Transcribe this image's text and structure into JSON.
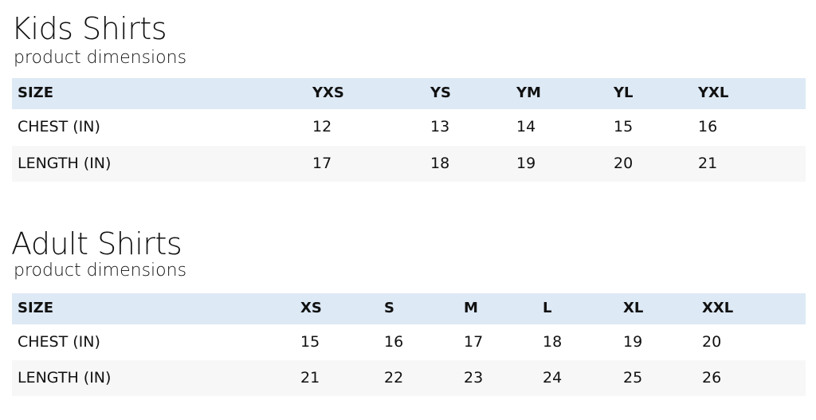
{
  "sections": [
    {
      "title": "Kids Shirts",
      "subtitle": "product dimensions",
      "table": {
        "header": [
          "SIZE",
          "YXS",
          "YS",
          "YM",
          "YL",
          "YXL"
        ],
        "rows": [
          [
            "CHEST (IN)",
            12,
            13,
            14,
            15,
            16
          ],
          [
            "LENGTH (IN)",
            17,
            18,
            19,
            20,
            21
          ]
        ]
      }
    },
    {
      "title": "Adult Shirts",
      "subtitle": "product dimensions",
      "table": {
        "header": [
          "SIZE",
          "XS",
          "S",
          "M",
          "L",
          "XL",
          "XXL"
        ],
        "rows": [
          [
            "CHEST (IN)",
            15,
            16,
            17,
            18,
            19,
            20
          ],
          [
            "LENGTH (IN)",
            21,
            22,
            23,
            24,
            25,
            26
          ]
        ]
      }
    }
  ]
}
